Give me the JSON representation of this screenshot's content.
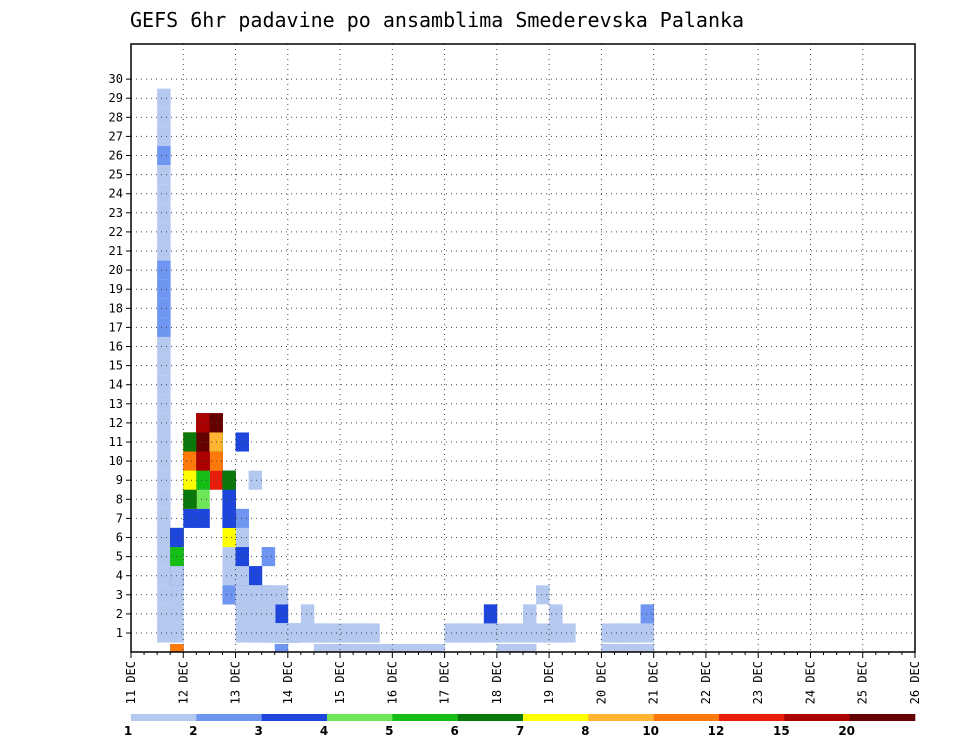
{
  "chart_data": {
    "type": "heatmap",
    "title": "GEFS 6hr padavine po ansamblima Smederevska Palanka",
    "xlabel": "",
    "ylabel": "",
    "x_ticks": [
      "11 DEC",
      "12 DEC",
      "13 DEC",
      "14 DEC",
      "15 DEC",
      "16 DEC",
      "17 DEC",
      "18 DEC",
      "19 DEC",
      "20 DEC",
      "21 DEC",
      "22 DEC",
      "23 DEC",
      "24 DEC",
      "25 DEC",
      "26 DEC"
    ],
    "y_ticks": [
      "1",
      "2",
      "3",
      "4",
      "5",
      "6",
      "7",
      "8",
      "9",
      "10",
      "11",
      "12",
      "13",
      "14",
      "15",
      "16",
      "17",
      "18",
      "19",
      "20",
      "21",
      "22",
      "23",
      "24",
      "25",
      "26",
      "27",
      "28",
      "29",
      "30"
    ],
    "x_unit": "6-hour step starting 11 DEC 00Z",
    "grid": true,
    "colorbar": {
      "levels": [
        "1",
        "2",
        "3",
        "4",
        "5",
        "6",
        "7",
        "8",
        "10",
        "12",
        "15",
        "20"
      ],
      "colors": [
        "#b4c8f0",
        "#6e96f0",
        "#1e46dc",
        "#6ee65a",
        "#14be14",
        "#0a780a",
        "#ffff00",
        "#ffb432",
        "#ff780a",
        "#e61e0a",
        "#aa0000",
        "#640000"
      ]
    },
    "cells": [
      [
        2,
        1,
        1
      ],
      [
        3,
        0,
        3
      ],
      [
        4,
        7,
        3
      ],
      [
        5,
        8,
        4
      ],
      [
        6,
        10,
        2
      ],
      [
        7,
        3,
        2
      ],
      [
        8,
        5,
        1
      ],
      [
        9,
        1,
        1
      ],
      [
        10,
        3,
        1
      ],
      [
        11,
        2,
        3
      ],
      [
        17,
        1,
        2
      ],
      [
        30,
        0,
        1
      ],
      [
        2,
        2,
        1
      ],
      [
        3,
        0,
        9
      ],
      [
        4,
        11,
        3
      ],
      [
        5,
        7,
        3
      ],
      [
        6,
        11,
        2
      ],
      [
        7,
        8,
        2
      ],
      [
        8,
        11,
        3
      ],
      [
        9,
        9,
        1
      ],
      [
        10,
        5,
        2
      ],
      [
        11,
        1,
        2
      ],
      [
        12,
        1,
        1
      ],
      [
        13,
        1,
        1
      ],
      [
        2,
        3,
        1
      ],
      [
        3,
        5,
        5
      ],
      [
        4,
        10,
        9
      ],
      [
        5,
        9,
        2
      ],
      [
        6,
        10,
        2
      ],
      [
        7,
        9,
        4
      ],
      [
        8,
        4,
        1
      ],
      [
        9,
        4,
        1
      ],
      [
        10,
        2,
        1
      ],
      [
        11,
        1,
        1
      ],
      [
        12,
        1,
        1
      ],
      [
        13,
        2,
        1
      ],
      [
        2,
        4,
        1
      ],
      [
        3,
        1,
        1
      ],
      [
        4,
        10,
        10
      ],
      [
        5,
        11,
        11
      ],
      [
        6,
        9,
        10
      ],
      [
        7,
        9,
        3
      ],
      [
        8,
        7,
        2
      ],
      [
        9,
        4,
        1
      ],
      [
        10,
        2,
        1
      ],
      [
        11,
        1,
        1
      ],
      [
        12,
        1,
        1
      ],
      [
        29,
        0,
        1
      ],
      [
        2,
        5,
        1
      ],
      [
        3,
        4,
        4
      ],
      [
        4,
        9,
        2
      ],
      [
        5,
        10,
        1
      ],
      [
        6,
        11,
        8
      ],
      [
        7,
        9,
        2
      ],
      [
        8,
        5,
        4
      ],
      [
        9,
        4,
        1
      ],
      [
        10,
        2,
        1
      ],
      [
        11,
        1,
        1
      ],
      [
        2,
        6,
        1
      ],
      [
        3,
        6,
        5
      ],
      [
        4,
        11,
        4
      ],
      [
        5,
        9,
        1
      ],
      [
        6,
        12,
        11
      ],
      [
        7,
        4,
        1
      ],
      [
        8,
        2,
        1
      ],
      [
        9,
        1,
        1
      ],
      [
        10,
        2,
        1
      ],
      [
        11,
        1,
        1
      ],
      [
        18,
        0,
        1
      ],
      [
        2,
        7,
        1
      ],
      [
        3,
        5,
        6
      ],
      [
        4,
        9,
        8
      ],
      [
        5,
        10,
        1
      ],
      [
        6,
        12,
        9
      ],
      [
        7,
        9,
        6
      ],
      [
        8,
        6,
        1
      ],
      [
        9,
        3,
        2
      ],
      [
        10,
        2,
        1
      ],
      [
        11,
        1,
        1
      ],
      [
        12,
        1,
        1
      ],
      [
        14,
        0,
        1
      ],
      [
        16,
        1,
        1
      ],
      [
        17,
        1,
        1
      ],
      [
        18,
        1,
        1
      ],
      [
        24,
        1,
        1
      ],
      [
        31,
        3,
        1
      ],
      [
        32,
        2,
        1
      ],
      [
        2,
        8,
        1
      ],
      [
        3,
        4,
        2
      ],
      [
        4,
        8,
        6
      ],
      [
        5,
        9,
        2
      ],
      [
        6,
        10,
        4
      ],
      [
        7,
        9,
        6
      ],
      [
        8,
        4,
        1
      ],
      [
        9,
        1,
        1
      ],
      [
        10,
        1,
        1
      ],
      [
        11,
        1,
        1
      ],
      [
        24,
        1,
        1
      ],
      [
        2,
        9,
        1
      ],
      [
        3,
        6,
        1
      ],
      [
        4,
        10,
        7
      ],
      [
        5,
        12,
        11
      ],
      [
        6,
        12,
        11
      ],
      [
        7,
        7,
        2
      ],
      [
        8,
        3,
        2
      ],
      [
        9,
        3,
        2
      ],
      [
        10,
        1,
        1
      ],
      [
        11,
        1,
        1
      ],
      [
        12,
        1,
        1
      ],
      [
        39,
        0,
        3
      ],
      [
        2,
        10,
        1
      ],
      [
        3,
        6,
        1
      ],
      [
        4,
        9,
        8
      ],
      [
        5,
        10,
        3
      ],
      [
        6,
        12,
        9
      ],
      [
        7,
        7,
        2
      ],
      [
        8,
        6,
        2
      ],
      [
        9,
        4,
        3
      ],
      [
        10,
        2,
        3
      ],
      [
        11,
        1,
        3
      ],
      [
        12,
        1,
        1
      ],
      [
        20,
        0,
        1
      ],
      [
        28,
        0,
        1
      ],
      [
        36,
        0,
        1
      ],
      [
        37,
        1,
        1
      ],
      [
        38,
        1,
        1
      ],
      [
        2,
        11,
        1
      ],
      [
        3,
        4,
        1
      ],
      [
        4,
        9,
        8
      ],
      [
        5,
        10,
        3
      ],
      [
        6,
        12,
        6
      ],
      [
        7,
        8,
        1
      ],
      [
        8,
        6,
        1
      ],
      [
        9,
        4,
        1
      ],
      [
        10,
        3,
        1
      ],
      [
        11,
        3,
        1
      ],
      [
        12,
        1,
        1
      ],
      [
        14,
        1,
        1
      ],
      [
        25,
        1,
        3
      ],
      [
        26,
        1,
        1
      ],
      [
        27,
        2,
        3
      ],
      [
        2,
        12,
        1
      ],
      [
        3,
        5,
        3
      ],
      [
        4,
        10,
        8
      ],
      [
        5,
        10,
        2
      ],
      [
        6,
        12,
        2
      ],
      [
        7,
        3,
        2
      ],
      [
        8,
        3,
        1
      ],
      [
        9,
        2,
        1
      ],
      [
        10,
        2,
        1
      ],
      [
        11,
        1,
        1
      ],
      [
        12,
        1,
        1
      ],
      [
        39,
        0,
        1
      ],
      [
        2,
        13,
        1
      ],
      [
        3,
        4,
        1
      ],
      [
        4,
        9,
        8
      ],
      [
        5,
        10,
        11
      ],
      [
        6,
        12,
        9
      ],
      [
        7,
        9,
        6
      ],
      [
        8,
        4,
        2
      ],
      [
        9,
        2,
        1
      ],
      [
        10,
        2,
        1
      ],
      [
        11,
        1,
        1
      ],
      [
        12,
        1,
        1
      ],
      [
        2,
        14,
        1
      ],
      [
        3,
        2,
        1
      ],
      [
        4,
        9,
        8
      ],
      [
        5,
        10,
        11
      ],
      [
        6,
        12,
        9
      ],
      [
        7,
        9,
        6
      ],
      [
        8,
        4,
        2
      ],
      [
        9,
        2,
        1
      ],
      [
        10,
        2,
        1
      ],
      [
        11,
        1,
        1
      ],
      [
        12,
        1,
        1
      ],
      [
        2,
        15,
        1
      ],
      [
        3,
        3,
        1
      ],
      [
        4,
        9,
        8
      ],
      [
        5,
        10,
        11
      ],
      [
        6,
        10,
        9
      ],
      [
        7,
        8,
        5
      ],
      [
        8,
        4,
        1
      ],
      [
        2,
        16,
        1
      ],
      [
        3,
        4,
        2
      ],
      [
        4,
        11,
        12
      ],
      [
        5,
        12,
        12
      ],
      [
        6,
        11,
        6
      ],
      [
        7,
        4,
        1
      ],
      [
        8,
        1,
        1
      ],
      [
        2,
        17,
        2
      ],
      [
        3,
        4,
        1
      ],
      [
        4,
        11,
        12
      ],
      [
        5,
        12,
        12
      ],
      [
        6,
        11,
        6
      ],
      [
        7,
        5,
        1
      ],
      [
        8,
        2,
        1
      ],
      [
        11,
        0,
        2
      ],
      [
        14,
        1,
        1
      ],
      [
        15,
        1,
        1
      ],
      [
        2,
        18,
        2
      ],
      [
        3,
        4,
        1
      ],
      [
        4,
        11,
        2
      ],
      [
        5,
        11,
        10
      ],
      [
        6,
        10,
        10
      ],
      [
        7,
        8,
        2
      ],
      [
        8,
        5,
        2
      ],
      [
        9,
        2,
        1
      ],
      [
        16,
        1,
        1
      ],
      [
        18,
        1,
        1
      ],
      [
        2,
        19,
        2
      ],
      [
        3,
        5,
        4
      ],
      [
        4,
        11,
        7
      ],
      [
        5,
        11,
        11
      ],
      [
        6,
        11,
        9
      ],
      [
        7,
        7,
        6
      ],
      [
        8,
        5,
        2
      ],
      [
        9,
        3,
        1
      ],
      [
        10,
        1,
        1
      ],
      [
        14,
        1,
        1
      ],
      [
        16,
        1,
        1
      ],
      [
        17,
        1,
        1
      ],
      [
        2,
        20,
        2
      ],
      [
        3,
        6,
        6
      ],
      [
        4,
        11,
        11
      ],
      [
        5,
        12,
        12
      ],
      [
        6,
        11,
        9
      ],
      [
        7,
        9,
        6
      ],
      [
        8,
        5,
        2
      ],
      [
        9,
        3,
        2
      ],
      [
        10,
        2,
        1
      ],
      [
        11,
        1,
        1
      ],
      [
        14,
        1,
        1
      ],
      [
        15,
        1,
        1
      ],
      [
        38,
        1,
        1
      ],
      [
        39,
        2,
        2
      ],
      [
        2,
        21,
        1
      ],
      [
        3,
        3,
        1
      ],
      [
        4,
        11,
        7
      ],
      [
        5,
        12,
        11
      ],
      [
        6,
        11,
        9
      ],
      [
        7,
        8,
        6
      ],
      [
        8,
        4,
        3
      ],
      [
        9,
        3,
        2
      ],
      [
        10,
        2,
        1
      ],
      [
        11,
        1,
        1
      ],
      [
        12,
        1,
        1
      ],
      [
        21,
        0,
        1
      ],
      [
        22,
        0,
        1
      ],
      [
        24,
        1,
        1
      ],
      [
        25,
        1,
        1
      ],
      [
        26,
        1,
        1
      ],
      [
        27,
        1,
        1
      ],
      [
        28,
        1,
        1
      ],
      [
        29,
        1,
        1
      ],
      [
        37,
        1,
        1
      ],
      [
        2,
        22,
        1
      ],
      [
        3,
        4,
        1
      ],
      [
        4,
        11,
        7
      ],
      [
        5,
        12,
        11
      ],
      [
        6,
        10,
        9
      ],
      [
        7,
        8,
        3
      ],
      [
        8,
        5,
        2
      ],
      [
        9,
        4,
        2
      ],
      [
        10,
        2,
        2
      ],
      [
        11,
        1,
        1
      ],
      [
        19,
        0,
        1
      ],
      [
        20,
        0,
        1
      ],
      [
        21,
        0,
        1
      ],
      [
        37,
        1,
        1
      ],
      [
        2,
        23,
        1
      ],
      [
        3,
        4,
        3
      ],
      [
        4,
        9,
        5
      ],
      [
        5,
        10,
        9
      ],
      [
        6,
        11,
        6
      ],
      [
        7,
        8,
        3
      ],
      [
        8,
        5,
        2
      ],
      [
        9,
        3,
        1
      ],
      [
        10,
        1,
        1
      ],
      [
        11,
        1,
        1
      ],
      [
        12,
        1,
        1
      ],
      [
        2,
        24,
        1
      ],
      [
        3,
        6,
        3
      ],
      [
        4,
        11,
        6
      ],
      [
        5,
        12,
        11
      ],
      [
        6,
        12,
        9
      ],
      [
        7,
        9,
        3
      ],
      [
        8,
        5,
        4
      ],
      [
        9,
        4,
        3
      ],
      [
        10,
        1,
        1
      ],
      [
        11,
        1,
        1
      ],
      [
        12,
        1,
        1
      ],
      [
        30,
        2,
        1
      ],
      [
        32,
        1,
        1
      ],
      [
        2,
        25,
        1
      ],
      [
        3,
        5,
        5
      ],
      [
        4,
        10,
        9
      ],
      [
        5,
        10,
        11
      ],
      [
        6,
        11,
        6
      ],
      [
        7,
        7,
        3
      ],
      [
        8,
        5,
        3
      ],
      [
        9,
        2,
        1
      ],
      [
        10,
        1,
        1
      ],
      [
        11,
        1,
        1
      ],
      [
        12,
        1,
        1
      ],
      [
        30,
        1,
        1
      ],
      [
        31,
        1,
        1
      ],
      [
        32,
        1,
        1
      ],
      [
        33,
        1,
        1
      ],
      [
        36,
        1,
        1
      ],
      [
        37,
        1,
        1
      ],
      [
        38,
        1,
        1
      ],
      [
        39,
        1,
        1
      ],
      [
        2,
        26,
        2
      ],
      [
        3,
        6,
        3
      ],
      [
        4,
        8,
        8
      ],
      [
        5,
        10,
        11
      ],
      [
        6,
        12,
        11
      ],
      [
        7,
        7,
        3
      ],
      [
        8,
        4,
        3
      ],
      [
        9,
        3,
        2
      ],
      [
        10,
        2,
        1
      ],
      [
        11,
        1,
        1
      ],
      [
        12,
        1,
        1
      ],
      [
        17,
        0,
        1
      ],
      [
        18,
        0,
        1
      ],
      [
        38,
        0,
        1
      ],
      [
        39,
        0,
        1
      ],
      [
        2,
        27,
        1
      ],
      [
        3,
        4,
        2
      ],
      [
        4,
        9,
        7
      ],
      [
        5,
        10,
        11
      ],
      [
        6,
        12,
        11
      ],
      [
        7,
        6,
        7
      ],
      [
        8,
        4,
        2
      ],
      [
        9,
        2,
        1
      ],
      [
        10,
        2,
        1
      ],
      [
        11,
        1,
        1
      ],
      [
        12,
        1,
        1
      ],
      [
        13,
        1,
        1
      ],
      [
        37,
        0,
        1
      ],
      [
        2,
        28,
        1
      ],
      [
        3,
        4,
        1
      ],
      [
        4,
        8,
        8
      ],
      [
        5,
        11,
        12
      ],
      [
        6,
        12,
        12
      ],
      [
        7,
        9,
        6
      ],
      [
        8,
        3,
        1
      ],
      [
        9,
        3,
        1
      ],
      [
        10,
        2,
        1
      ],
      [
        11,
        1,
        1
      ],
      [
        12,
        1,
        1
      ],
      [
        15,
        0,
        1
      ],
      [
        16,
        0,
        1
      ],
      [
        2,
        29,
        1
      ],
      [
        3,
        1,
        1
      ],
      [
        4,
        8,
        6
      ],
      [
        5,
        9,
        5
      ],
      [
        6,
        11,
        8
      ],
      [
        7,
        7,
        3
      ],
      [
        8,
        4,
        1
      ],
      [
        9,
        2,
        1
      ],
      [
        10,
        1,
        1
      ],
      [
        11,
        1,
        1
      ],
      [
        12,
        1,
        1
      ],
      [
        13,
        1,
        1
      ],
      [
        22,
        0,
        1
      ],
      [
        23,
        0,
        1
      ],
      [
        28,
        0,
        1
      ],
      [
        29,
        0,
        1
      ]
    ]
  }
}
